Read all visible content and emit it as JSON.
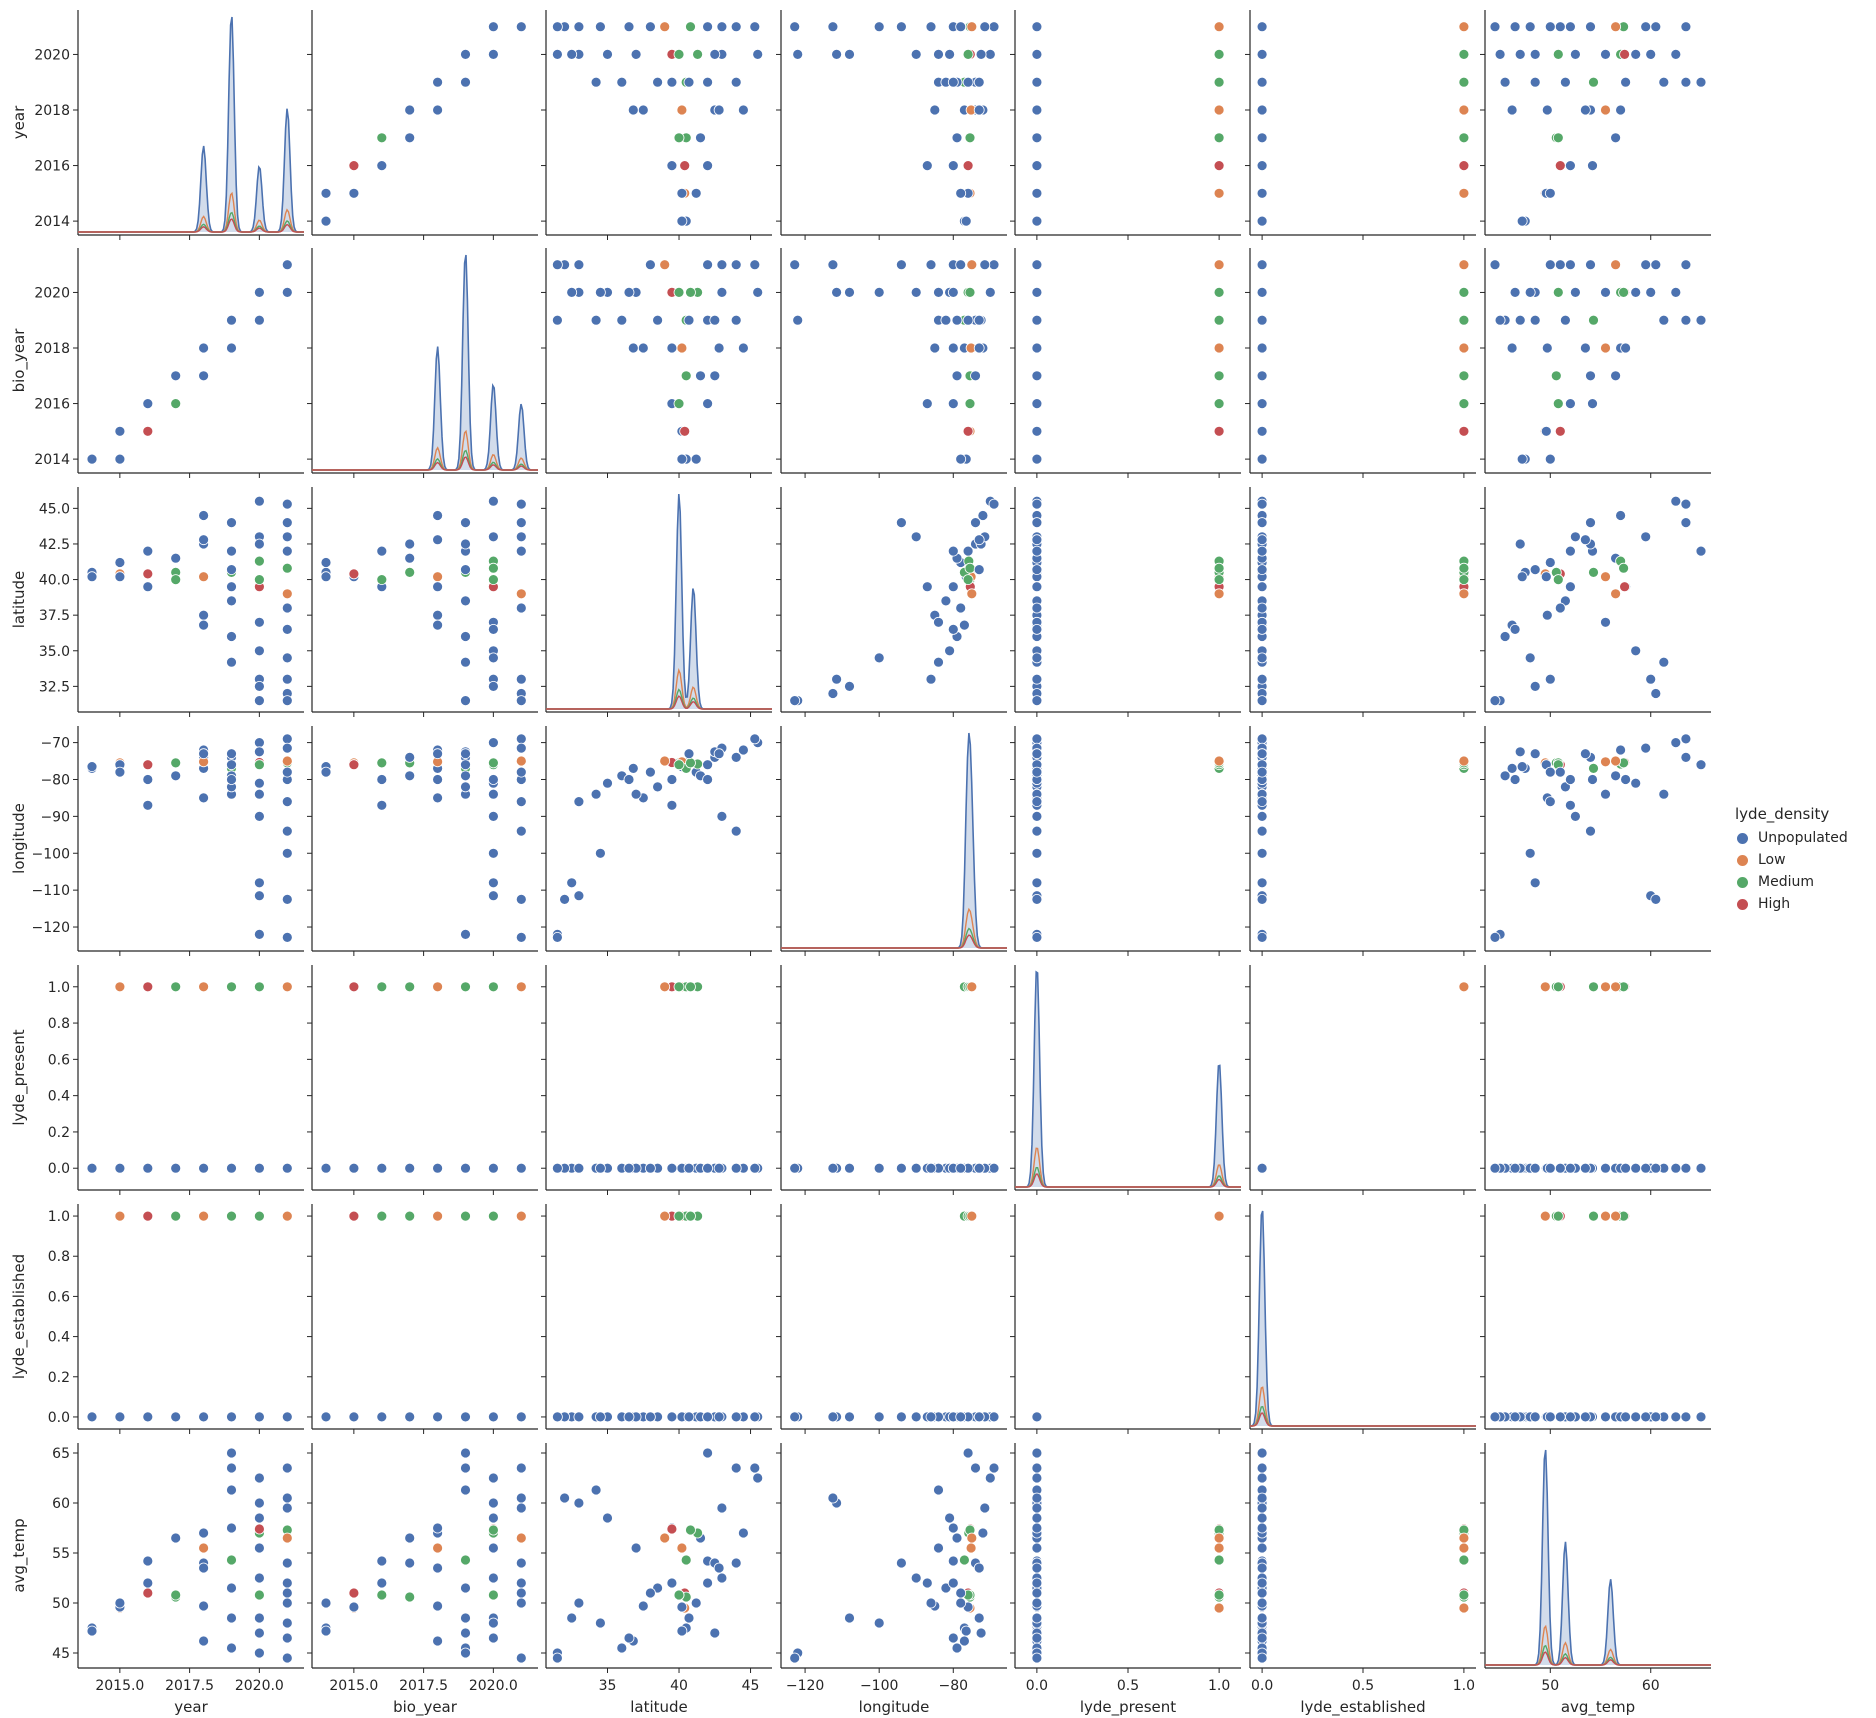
{
  "chart_data": {
    "type": "scatter",
    "kind": "pairplot",
    "hue": "lyde_density",
    "variables": [
      {
        "name": "year",
        "range": [
          2013.5,
          2021.6
        ],
        "ticks": [
          {
            "v": 2014,
            "t": "2014"
          },
          {
            "v": 2016,
            "t": "2016"
          },
          {
            "v": 2018,
            "t": "2018"
          },
          {
            "v": 2020,
            "t": "2020"
          }
        ],
        "xticks": [
          {
            "v": 2015,
            "t": "2015.0"
          },
          {
            "v": 2017.5,
            "t": "2017.5"
          },
          {
            "v": 2020,
            "t": "2020.0"
          }
        ]
      },
      {
        "name": "bio_year",
        "range": [
          2013.5,
          2021.6
        ],
        "ticks": [
          {
            "v": 2014,
            "t": "2014"
          },
          {
            "v": 2016,
            "t": "2016"
          },
          {
            "v": 2018,
            "t": "2018"
          },
          {
            "v": 2020,
            "t": "2020"
          }
        ],
        "xticks": [
          {
            "v": 2015,
            "t": "2015.0"
          },
          {
            "v": 2017.5,
            "t": "2017.5"
          },
          {
            "v": 2020,
            "t": "2020.0"
          }
        ]
      },
      {
        "name": "latitude",
        "range": [
          30.7,
          46.5
        ],
        "ticks": [
          {
            "v": 32.5,
            "t": "32.5"
          },
          {
            "v": 35,
            "t": "35.0"
          },
          {
            "v": 37.5,
            "t": "37.5"
          },
          {
            "v": 40,
            "t": "40.0"
          },
          {
            "v": 42.5,
            "t": "42.5"
          },
          {
            "v": 45,
            "t": "45.0"
          }
        ],
        "xticks": [
          {
            "v": 35,
            "t": "35"
          },
          {
            "v": 40,
            "t": "40"
          },
          {
            "v": 45,
            "t": "45"
          }
        ]
      },
      {
        "name": "longitude",
        "range": [
          -126.5,
          -65.5
        ],
        "ticks": [
          {
            "v": -120,
            "t": "−120"
          },
          {
            "v": -110,
            "t": "−110"
          },
          {
            "v": -100,
            "t": "−100"
          },
          {
            "v": -90,
            "t": "−90"
          },
          {
            "v": -80,
            "t": "−80"
          },
          {
            "v": -70,
            "t": "−70"
          }
        ],
        "xticks": [
          {
            "v": -120,
            "t": "−120"
          },
          {
            "v": -100,
            "t": "−100"
          },
          {
            "v": -80,
            "t": "−80"
          }
        ]
      },
      {
        "name": "lyde_present",
        "range": [
          -0.12,
          1.12
        ],
        "ticks": [
          {
            "v": 0,
            "t": "0.0"
          },
          {
            "v": 0.2,
            "t": "0.2"
          },
          {
            "v": 0.4,
            "t": "0.4"
          },
          {
            "v": 0.6,
            "t": "0.6"
          },
          {
            "v": 0.8,
            "t": "0.8"
          },
          {
            "v": 1,
            "t": "1.0"
          }
        ],
        "xticks": [
          {
            "v": 0,
            "t": "0.0"
          },
          {
            "v": 0.5,
            "t": "0.5"
          },
          {
            "v": 1,
            "t": "1.0"
          }
        ]
      },
      {
        "name": "lyde_established",
        "range": [
          -0.06,
          1.06
        ],
        "ticks": [
          {
            "v": 0,
            "t": "0.0"
          },
          {
            "v": 0.2,
            "t": "0.2"
          },
          {
            "v": 0.4,
            "t": "0.4"
          },
          {
            "v": 0.6,
            "t": "0.6"
          },
          {
            "v": 0.8,
            "t": "0.8"
          },
          {
            "v": 1,
            "t": "1.0"
          }
        ],
        "xticks": [
          {
            "v": 0,
            "t": "0.0"
          },
          {
            "v": 0.5,
            "t": "0.5"
          },
          {
            "v": 1,
            "t": "1.0"
          }
        ]
      },
      {
        "name": "avg_temp",
        "range": [
          43.5,
          66
        ],
        "ticks": [
          {
            "v": 45,
            "t": "45"
          },
          {
            "v": 50,
            "t": "50"
          },
          {
            "v": 55,
            "t": "55"
          },
          {
            "v": 60,
            "t": "60"
          },
          {
            "v": 65,
            "t": "65"
          }
        ],
        "xticks": [
          {
            "v": 50,
            "t": "50"
          },
          {
            "v": 60,
            "t": "60"
          }
        ]
      }
    ],
    "legend": {
      "title": "lyde_density",
      "position": "right",
      "entries": [
        {
          "label": "Unpopulated",
          "color": "#4c72b0"
        },
        {
          "label": "Low",
          "color": "#dd8452"
        },
        {
          "label": "Medium",
          "color": "#55a868"
        },
        {
          "label": "High",
          "color": "#c44e52"
        }
      ]
    },
    "points": [
      [
        2014,
        2014,
        40.5,
        -77,
        0,
        0,
        47.5,
        0
      ],
      [
        2014,
        2014,
        40.2,
        -76.5,
        0,
        0,
        47.2,
        0
      ],
      [
        2015,
        2015,
        40.4,
        -75.5,
        1,
        1,
        49.5,
        1
      ],
      [
        2015,
        2015,
        40.2,
        -76,
        0,
        0,
        49.6,
        0
      ],
      [
        2015,
        2014,
        41.2,
        -78,
        0,
        0,
        50.0,
        0
      ],
      [
        2016,
        2016,
        42.0,
        -80,
        0,
        0,
        54.2,
        0
      ],
      [
        2016,
        2015,
        40.4,
        -76,
        1,
        1,
        51.0,
        3
      ],
      [
        2016,
        2016,
        39.5,
        -87,
        0,
        0,
        52.0,
        0
      ],
      [
        2017,
        2017,
        40.5,
        -75.5,
        1,
        1,
        50.6,
        2
      ],
      [
        2017,
        2017,
        41.5,
        -79,
        0,
        0,
        56.5,
        0
      ],
      [
        2017,
        2016,
        40.0,
        -75.5,
        1,
        1,
        50.8,
        2
      ],
      [
        2018,
        2018,
        44.5,
        -72,
        0,
        0,
        57.0,
        0
      ],
      [
        2018,
        2018,
        37.5,
        -85,
        0,
        0,
        49.7,
        0
      ],
      [
        2018,
        2017,
        42.5,
        -74,
        0,
        0,
        54.0,
        0
      ],
      [
        2018,
        2018,
        36.8,
        -77,
        0,
        0,
        46.2,
        0
      ],
      [
        2018,
        2018,
        40.2,
        -75.2,
        1,
        1,
        55.5,
        1
      ],
      [
        2019,
        2019,
        44.0,
        -74,
        0,
        0,
        63.5,
        0
      ],
      [
        2019,
        2019,
        34.2,
        -84,
        0,
        0,
        61.3,
        0
      ],
      [
        2019,
        2019,
        40.5,
        -77,
        1,
        1,
        54.3,
        2
      ],
      [
        2019,
        2019,
        38.5,
        -82,
        0,
        0,
        51.5,
        0
      ],
      [
        2019,
        2019,
        36.0,
        -79,
        0,
        0,
        45.5,
        0
      ],
      [
        2019,
        2019,
        42.0,
        -76,
        0,
        0,
        65.0,
        0
      ],
      [
        2019,
        2018,
        39.5,
        -80,
        0,
        0,
        57.5,
        0
      ],
      [
        2020,
        2020,
        45.5,
        -70,
        0,
        0,
        62.5,
        0
      ],
      [
        2020,
        2020,
        41.3,
        -75.8,
        1,
        1,
        57.0,
        2
      ],
      [
        2020,
        2020,
        39.5,
        -75.4,
        1,
        1,
        57.4,
        3
      ],
      [
        2020,
        2020,
        40.0,
        -76,
        1,
        1,
        50.8,
        2
      ],
      [
        2020,
        2020,
        33.0,
        -111.5,
        0,
        0,
        60.0,
        0
      ],
      [
        2020,
        2019,
        31.5,
        -122.0,
        0,
        0,
        45.0,
        0
      ],
      [
        2020,
        2020,
        32.5,
        -108,
        0,
        0,
        48.5,
        0
      ],
      [
        2020,
        2020,
        43.0,
        -90,
        0,
        0,
        52.5,
        0
      ],
      [
        2020,
        2020,
        37.0,
        -84,
        0,
        0,
        55.5,
        0
      ],
      [
        2020,
        2019,
        42.5,
        -72.5,
        0,
        0,
        47.0,
        0
      ],
      [
        2020,
        2020,
        35.0,
        -81,
        0,
        0,
        58.5,
        0
      ],
      [
        2021,
        2021,
        45.3,
        -69,
        0,
        0,
        63.5,
        0
      ],
      [
        2021,
        2020,
        40.8,
        -75.5,
        1,
        1,
        57.3,
        2
      ],
      [
        2021,
        2021,
        39.0,
        -75.0,
        1,
        1,
        56.5,
        1
      ],
      [
        2021,
        2021,
        32.0,
        -112.5,
        0,
        0,
        60.5,
        0
      ],
      [
        2021,
        2021,
        31.5,
        -122.8,
        0,
        0,
        44.5,
        0
      ],
      [
        2021,
        2020,
        34.5,
        -100,
        0,
        0,
        48.0,
        0
      ],
      [
        2021,
        2021,
        42.0,
        -80,
        0,
        0,
        52.0,
        0
      ],
      [
        2021,
        2021,
        44.0,
        -94,
        0,
        0,
        54.0,
        0
      ],
      [
        2021,
        2020,
        36.5,
        -80,
        0,
        0,
        46.5,
        0
      ],
      [
        2021,
        2021,
        38.0,
        -78,
        0,
        0,
        51.0,
        0
      ],
      [
        2021,
        2021,
        43.0,
        -71.5,
        0,
        0,
        59.5,
        0
      ],
      [
        2021,
        2021,
        33.0,
        -86,
        0,
        0,
        50.0,
        0
      ],
      [
        2019,
        2019,
        40.7,
        -73,
        0,
        0,
        48.5,
        0
      ],
      [
        2018,
        2018,
        42.8,
        -73,
        0,
        0,
        53.5,
        0
      ]
    ],
    "diagonal_kde_peaks": [
      [
        2019,
        2021,
        2018,
        2020
      ],
      [
        2019,
        2018,
        2020,
        2021
      ],
      [
        40.0,
        41.0
      ],
      [
        -76.0,
        -75.0
      ],
      [
        0.0,
        1.0
      ],
      [
        0.0
      ],
      [
        49.5,
        51.5,
        56.0
      ]
    ]
  }
}
